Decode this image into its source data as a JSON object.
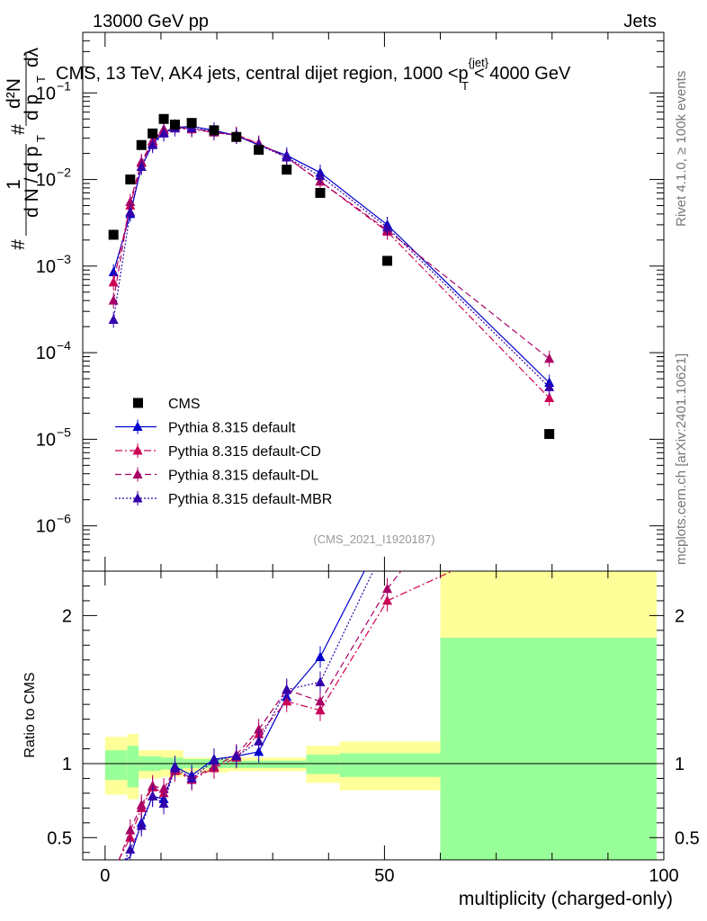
{
  "header": {
    "left": "13000 GeV pp",
    "right": "Jets"
  },
  "chart_data": {
    "type": "scatter",
    "title": "CMS, 13 TeV, AK4 jets, central dijet region, 1000 <p",
    "title_sup": "{jet}",
    "title_sub": "T",
    "title_end": "< 4000 GeV",
    "analysis_tag": "(CMS_2021_I1920187)",
    "side_label_top": "Rivet 4.1.0, ≥ 100k events",
    "side_label_bottom": "mcplots.cern.ch [arXiv:2401.10621]",
    "ylabel_parts": {
      "hash1": "#",
      "one": "1",
      "dN": "d N / d p",
      "T": "T",
      "hash2": "#",
      "d2N": "d²N",
      "dpTdl": "d p",
      "T2": "T",
      "dlambda": "dλ"
    },
    "xlabel": "multiplicity (charged-only)",
    "ratio_ylabel": "Ratio to CMS",
    "xlim": [
      -4,
      100
    ],
    "ylim_log": [
      3e-07,
      0.5
    ],
    "ratio_ylim": [
      0.35,
      2.3
    ],
    "x_ticks": [
      "0",
      "50",
      "100"
    ],
    "x_tick_values": [
      0,
      50,
      100
    ],
    "y_ticks": [
      {
        "v": 1e-06,
        "m": "10",
        "e": "−6"
      },
      {
        "v": 1e-05,
        "m": "10",
        "e": "−5"
      },
      {
        "v": 0.0001,
        "m": "10",
        "e": "−4"
      },
      {
        "v": 0.001,
        "m": "10",
        "e": "−3"
      },
      {
        "v": 0.01,
        "m": "10",
        "e": "−2"
      },
      {
        "v": 0.1,
        "m": "10",
        "e": "−1"
      }
    ],
    "ratio_ticks": [
      {
        "v": 0.5,
        "label": "0.5"
      },
      {
        "v": 1,
        "label": "1"
      },
      {
        "v": 2,
        "label": "2"
      }
    ],
    "data": {
      "name": "CMS",
      "color": "#000000",
      "x": [
        1.5,
        4.5,
        6.5,
        8.5,
        10.5,
        12.5,
        15.5,
        19.5,
        23.5,
        27.5,
        32.5,
        38.5,
        50.5,
        79.5
      ],
      "y": [
        0.0023,
        0.01,
        0.025,
        0.034,
        0.05,
        0.043,
        0.045,
        0.037,
        0.031,
        0.022,
        0.013,
        0.007,
        0.00115,
        1.15e-05
      ]
    },
    "bands": [
      {
        "lo": 0,
        "hi": 4,
        "y_lo": 0.79,
        "y_hi": 1.18,
        "g_lo": 0.89,
        "g_hi": 1.09
      },
      {
        "lo": 4,
        "hi": 6,
        "y_lo": 0.76,
        "y_hi": 1.2,
        "g_lo": 0.84,
        "g_hi": 1.12
      },
      {
        "lo": 6,
        "hi": 10,
        "y_lo": 0.9,
        "y_hi": 1.09,
        "g_lo": 0.95,
        "g_hi": 1.05
      },
      {
        "lo": 10,
        "hi": 14,
        "y_lo": 0.91,
        "y_hi": 1.09,
        "g_lo": 0.96,
        "g_hi": 1.04
      },
      {
        "lo": 14,
        "hi": 22,
        "y_lo": 0.94,
        "y_hi": 1.04,
        "g_lo": 0.97,
        "g_hi": 1.03
      },
      {
        "lo": 22,
        "hi": 36,
        "y_lo": 0.95,
        "y_hi": 1.04,
        "g_lo": 0.97,
        "g_hi": 1.02
      },
      {
        "lo": 36,
        "hi": 42,
        "y_lo": 0.87,
        "y_hi": 1.12,
        "g_lo": 0.93,
        "g_hi": 1.06
      },
      {
        "lo": 42,
        "hi": 60,
        "y_lo": 0.82,
        "y_hi": 1.15,
        "g_lo": 0.91,
        "g_hi": 1.07
      },
      {
        "lo": 60,
        "hi": 99,
        "y_lo": 0.33,
        "y_hi": 2.3,
        "g_lo": 0.33,
        "g_hi": 1.85
      }
    ],
    "band_colors": {
      "yellow": "#ffff99",
      "green": "#99ff99"
    },
    "series": [
      {
        "name": "Pythia 8.315 default",
        "color": "#0000cc",
        "style": "solid",
        "x": [
          1.5,
          4.5,
          6.5,
          8.5,
          10.5,
          12.5,
          15.5,
          19.5,
          23.5,
          27.5,
          32.5,
          38.5,
          50.5,
          79.5
        ],
        "y": [
          0.00085,
          0.004,
          0.014,
          0.026,
          0.035,
          0.04,
          0.041,
          0.037,
          0.032,
          0.025,
          0.019,
          0.012,
          0.003,
          4.5e-05
        ],
        "ratio": [
          0.3,
          0.37,
          0.6,
          0.78,
          0.76,
          0.98,
          0.92,
          1.03,
          1.05,
          1.08,
          1.45,
          1.72,
          2.6,
          3.9
        ]
      },
      {
        "name": "Pythia 8.315 default-CD",
        "color": "#cc0055",
        "style": "dashdot",
        "x": [
          1.5,
          4.5,
          6.5,
          8.5,
          10.5,
          12.5,
          15.5,
          19.5,
          23.5,
          27.5,
          32.5,
          38.5,
          50.5,
          79.5
        ],
        "y": [
          0.00065,
          0.005,
          0.0155,
          0.027,
          0.037,
          0.039,
          0.038,
          0.035,
          0.032,
          0.026,
          0.018,
          0.0095,
          0.0025,
          3e-05
        ],
        "ratio": [
          0.28,
          0.5,
          0.7,
          0.84,
          0.8,
          0.95,
          0.89,
          0.97,
          1.04,
          1.2,
          1.42,
          1.36,
          2.1,
          2.6
        ]
      },
      {
        "name": "Pythia 8.315 default-DL",
        "color": "#aa0066",
        "style": "dashed",
        "x": [
          1.5,
          4.5,
          6.5,
          8.5,
          10.5,
          12.5,
          15.5,
          19.5,
          23.5,
          27.5,
          32.5,
          38.5,
          50.5,
          79.5
        ],
        "y": [
          0.0004,
          0.0055,
          0.016,
          0.028,
          0.038,
          0.04,
          0.039,
          0.035,
          0.033,
          0.026,
          0.018,
          0.0095,
          0.0026,
          8.5e-05
        ],
        "ratio": [
          0.25,
          0.55,
          0.72,
          0.85,
          0.83,
          0.96,
          0.9,
          0.98,
          1.06,
          1.23,
          1.5,
          1.42,
          2.18,
          3.6
        ]
      },
      {
        "name": "Pythia 8.315 default-MBR",
        "color": "#3300aa",
        "style": "dotted",
        "x": [
          1.5,
          4.5,
          6.5,
          8.5,
          10.5,
          12.5,
          15.5,
          19.5,
          23.5,
          27.5,
          32.5,
          38.5,
          50.5,
          79.5
        ],
        "y": [
          0.00024,
          0.0042,
          0.014,
          0.025,
          0.034,
          0.039,
          0.039,
          0.036,
          0.032,
          0.025,
          0.018,
          0.011,
          0.0028,
          4e-05
        ],
        "ratio": [
          0.2,
          0.42,
          0.58,
          0.78,
          0.73,
          0.97,
          0.9,
          1.02,
          1.05,
          1.15,
          1.5,
          1.55,
          2.5,
          3.5
        ]
      }
    ],
    "legend_position": "bottom-left"
  }
}
